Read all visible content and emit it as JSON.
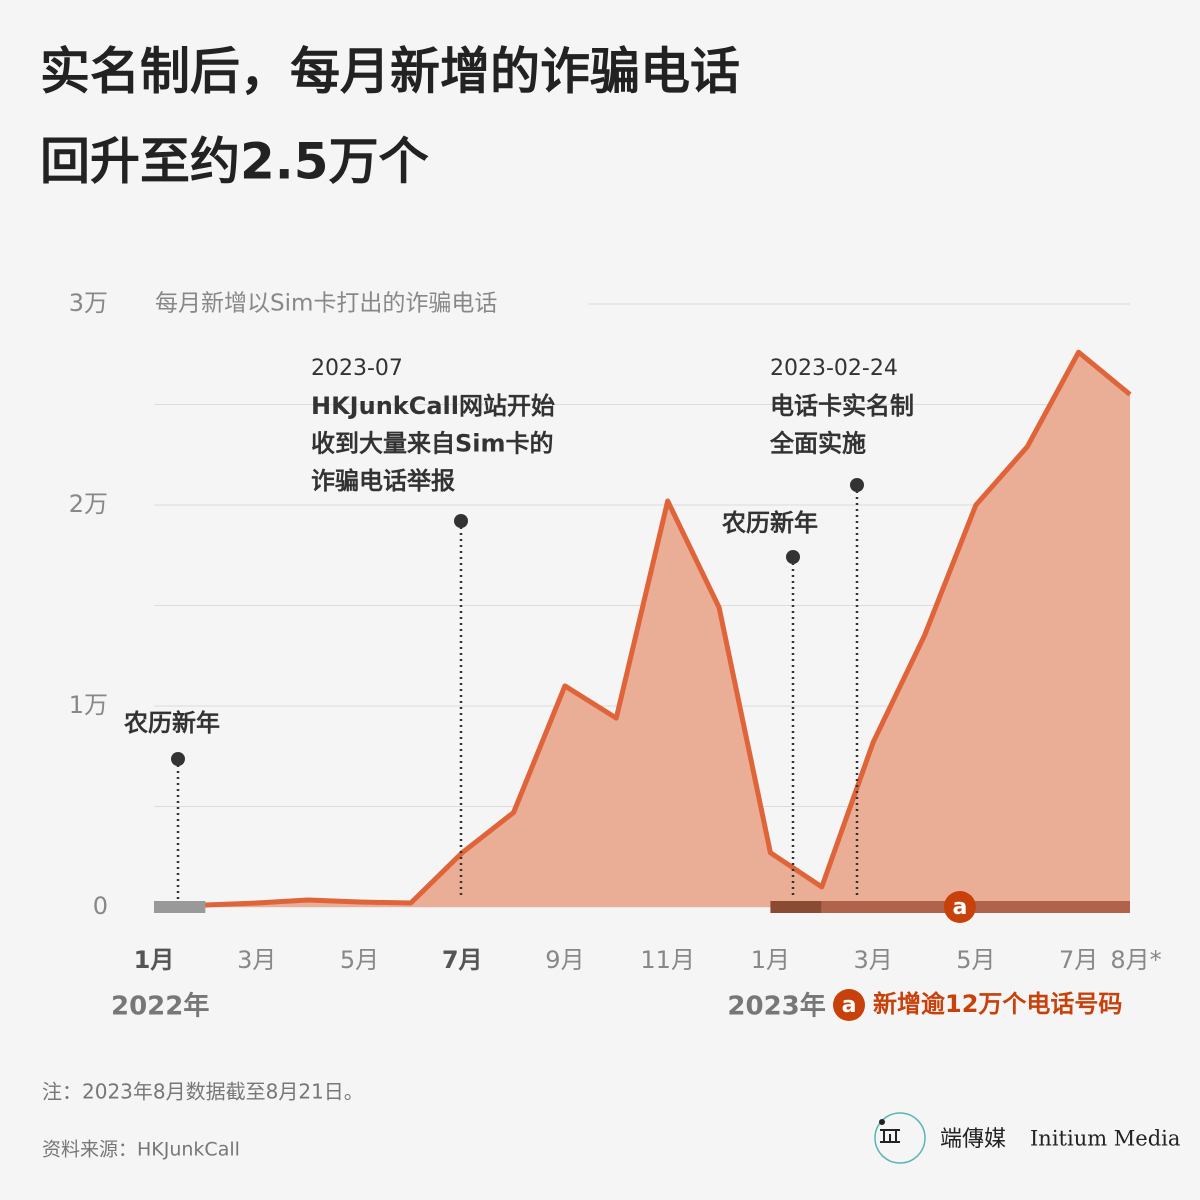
{
  "title_lines": [
    "实名制后，每月新增的诈骗电话",
    "回升至约2.5万个"
  ],
  "chart_data": {
    "type": "area",
    "y_label": "每月新增以Sim卡打出的诈骗电话",
    "categories": [
      "1月",
      null,
      "3月",
      null,
      "5月",
      null,
      "7月",
      null,
      "9月",
      null,
      "11月",
      null,
      "1月",
      null,
      "3月",
      null,
      "5月",
      null,
      "7月",
      "8月*"
    ],
    "bold_categories": [
      0,
      6
    ],
    "values": [
      100,
      100,
      200,
      350,
      250,
      200,
      2700,
      4700,
      11000,
      9400,
      20200,
      14900,
      2700,
      1000,
      8200,
      13500,
      20000,
      22900,
      27600,
      25500
    ],
    "color": "#e0643a",
    "fill_color": "#eaad95",
    "ylim": [
      0,
      30000
    ],
    "yticks": [
      {
        "value": 0,
        "label": "0"
      },
      {
        "value": 10000,
        "label": "1万"
      },
      {
        "value": 20000,
        "label": "2万"
      },
      {
        "value": 30000,
        "label": "3万"
      }
    ],
    "minor_grid": [
      5000,
      15000,
      25000
    ],
    "grid": true,
    "year_labels": [
      {
        "label": "2022年",
        "at": 0
      },
      {
        "label": "2023年",
        "at": 12
      }
    ],
    "periods": [
      {
        "from": 0,
        "to": 1,
        "color": "#999999"
      },
      {
        "from": 12,
        "to": 13,
        "color": "#8b4a32"
      },
      {
        "from": 13,
        "to": 19,
        "color": "#b0634a",
        "marker": "a"
      }
    ],
    "legend": {
      "marker": "a",
      "text": "新增逾12万个电话号码",
      "color": "#c8410b"
    },
    "annotations": [
      {
        "lines": [
          "农历新年"
        ]
      },
      {
        "date": "2023-07",
        "lines": [
          "HKJunkCall网站开始",
          "收到大量来自Sim卡的",
          "诈骗电话举报"
        ]
      },
      {
        "lines": [
          "农历新年"
        ]
      },
      {
        "date": "2023-02-24",
        "lines": [
          "电话卡实名制",
          "全面实施"
        ]
      }
    ]
  },
  "footer": {
    "note": "注：2023年8月数据截至8月21日。",
    "source": "资料来源：HKJunkCall"
  },
  "logo": {
    "name_zh": "端傳媒",
    "name_en": "Initium Media"
  }
}
